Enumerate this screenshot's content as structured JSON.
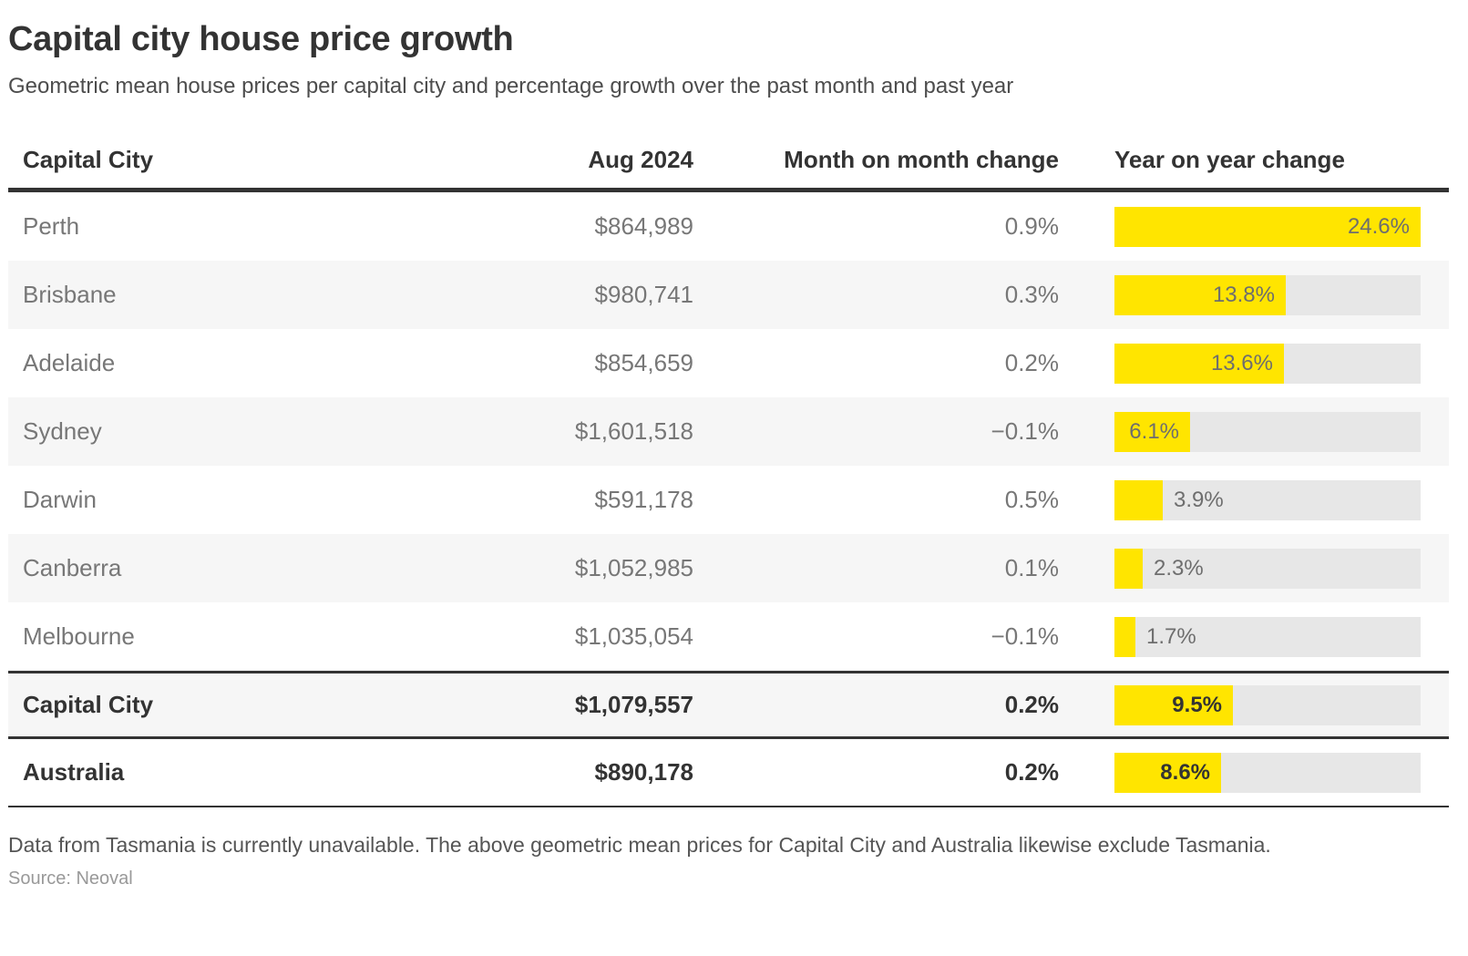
{
  "page": {
    "title": "Capital city house price growth",
    "subtitle": "Geometric mean house prices per capital city and percentage growth over the past month and past year",
    "footnote": "Data from Tasmania is currently unavailable. The above geometric mean prices for Capital City and Australia likewise exclude Tasmania.",
    "source": "Source: Neoval"
  },
  "chart_data": {
    "type": "table",
    "title": "Capital city house price growth",
    "subtitle": "Geometric mean house prices per capital city and percentage growth over the past month and past year",
    "columns": [
      "Capital City",
      "Aug 2024",
      "Month on month change",
      "Year on year change"
    ],
    "bar_column": {
      "measure": "Year on year change (%)",
      "axis_min": 0,
      "axis_max": 24.6,
      "bar_color": "#ffe500",
      "track_color": "#e7e7e7"
    },
    "rows": [
      {
        "city": "Perth",
        "price": "$864,989",
        "mom": "0.9%",
        "yoy": 24.6,
        "yoy_label": "24.6%",
        "emphasis": false
      },
      {
        "city": "Brisbane",
        "price": "$980,741",
        "mom": "0.3%",
        "yoy": 13.8,
        "yoy_label": "13.8%",
        "emphasis": false
      },
      {
        "city": "Adelaide",
        "price": "$854,659",
        "mom": "0.2%",
        "yoy": 13.6,
        "yoy_label": "13.6%",
        "emphasis": false
      },
      {
        "city": "Sydney",
        "price": "$1,601,518",
        "mom": "−0.1%",
        "yoy": 6.1,
        "yoy_label": "6.1%",
        "emphasis": false
      },
      {
        "city": "Darwin",
        "price": "$591,178",
        "mom": "0.5%",
        "yoy": 3.9,
        "yoy_label": "3.9%",
        "emphasis": false
      },
      {
        "city": "Canberra",
        "price": "$1,052,985",
        "mom": "0.1%",
        "yoy": 2.3,
        "yoy_label": "2.3%",
        "emphasis": false
      },
      {
        "city": "Melbourne",
        "price": "$1,035,054",
        "mom": "−0.1%",
        "yoy": 1.7,
        "yoy_label": "1.7%",
        "emphasis": false
      },
      {
        "city": "Capital City",
        "price": "$1,079,557",
        "mom": "0.2%",
        "yoy": 9.5,
        "yoy_label": "9.5%",
        "emphasis": true
      },
      {
        "city": "Australia",
        "price": "$890,178",
        "mom": "0.2%",
        "yoy": 8.6,
        "yoy_label": "8.6%",
        "emphasis": true
      }
    ]
  },
  "colors": {
    "accent_yellow": "#ffe500",
    "bar_track": "#e7e7e7",
    "row_alt_background": "#f6f6f6",
    "border_dark": "#333333"
  }
}
